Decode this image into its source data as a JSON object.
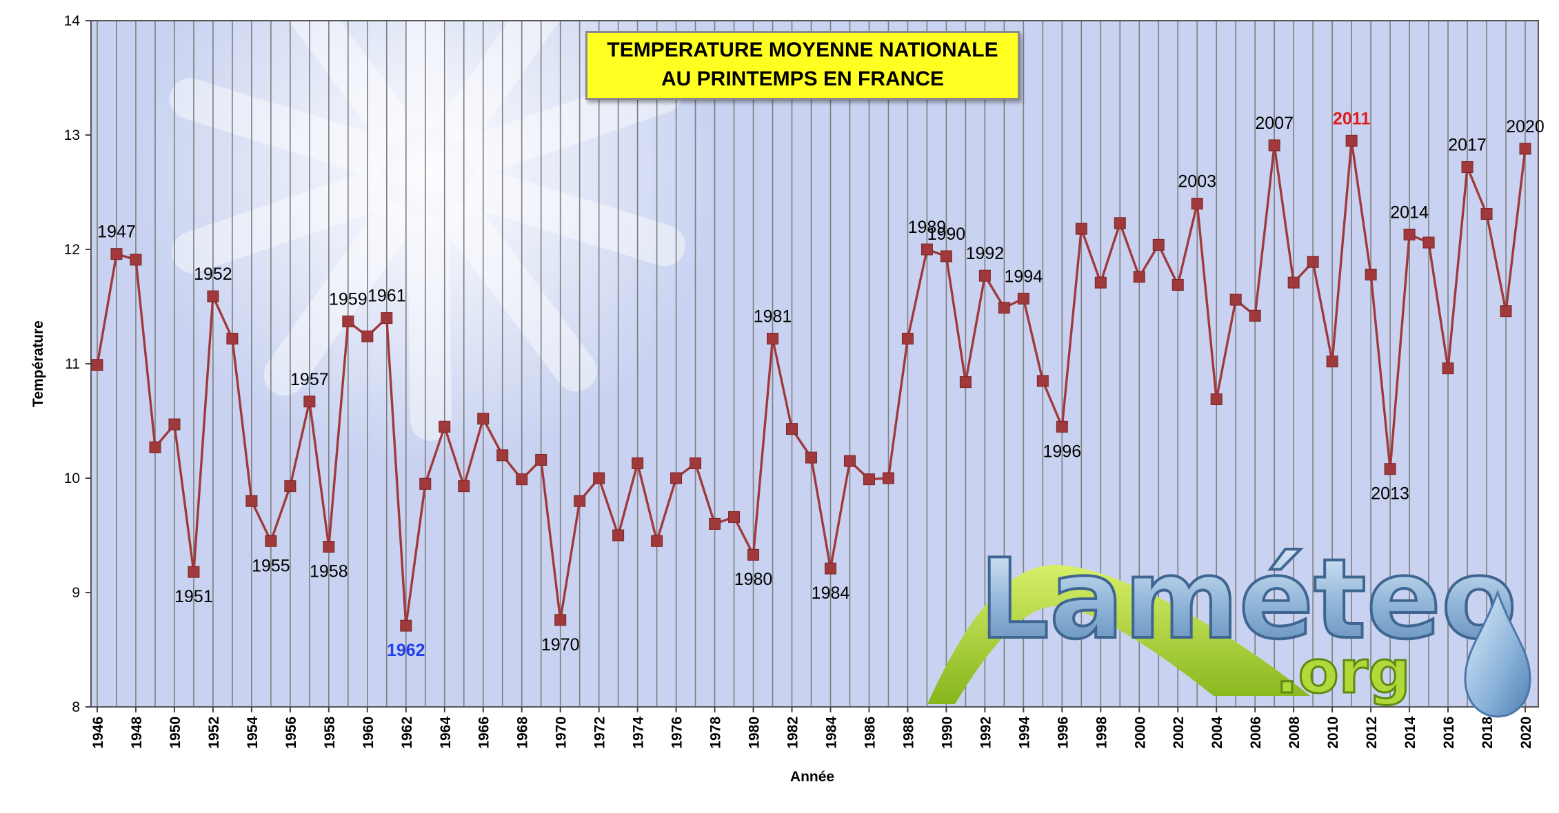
{
  "chart_data": {
    "type": "line",
    "title_lines": [
      "TEMPERATURE MOYENNE NATIONALE",
      "AU PRINTEMPS EN FRANCE"
    ],
    "xlabel": "Année",
    "ylabel": "Température",
    "ylim": [
      8,
      14
    ],
    "yticks": [
      "8",
      "9",
      "10",
      "11",
      "12",
      "13",
      "14"
    ],
    "xlim": [
      1946,
      2020
    ],
    "xticks": [
      "1946",
      "1948",
      "1950",
      "1952",
      "1954",
      "1956",
      "1958",
      "1960",
      "1962",
      "1964",
      "1966",
      "1968",
      "1970",
      "1972",
      "1974",
      "1976",
      "1978",
      "1980",
      "1982",
      "1984",
      "1986",
      "1988",
      "1990",
      "1992",
      "1994",
      "1996",
      "1998",
      "2000",
      "2002",
      "2004",
      "2006",
      "2008",
      "2010",
      "2012",
      "2014",
      "2016",
      "2018",
      "2020"
    ],
    "grid": "vertical",
    "series": [
      {
        "color": "#a0393b",
        "x": [
          1946,
          1947,
          1948,
          1949,
          1950,
          1951,
          1952,
          1953,
          1954,
          1955,
          1956,
          1957,
          1958,
          1959,
          1960,
          1961,
          1962,
          1963,
          1964,
          1965,
          1966,
          1967,
          1968,
          1969,
          1970,
          1971,
          1972,
          1973,
          1974,
          1975,
          1976,
          1977,
          1978,
          1979,
          1980,
          1981,
          1982,
          1983,
          1984,
          1985,
          1986,
          1987,
          1988,
          1989,
          1990,
          1991,
          1992,
          1993,
          1994,
          1995,
          1996,
          1997,
          1998,
          1999,
          2000,
          2001,
          2002,
          2003,
          2004,
          2005,
          2006,
          2007,
          2008,
          2009,
          2010,
          2011,
          2012,
          2013,
          2014,
          2015,
          2016,
          2017,
          2018,
          2019,
          2020
        ],
        "y": [
          10.99,
          11.96,
          11.91,
          10.27,
          10.47,
          9.18,
          11.59,
          11.22,
          9.8,
          9.45,
          9.93,
          10.67,
          9.4,
          11.37,
          11.24,
          11.4,
          8.71,
          9.95,
          10.45,
          9.93,
          10.52,
          10.2,
          9.99,
          10.16,
          8.76,
          9.8,
          10.0,
          9.5,
          10.13,
          9.45,
          10.0,
          10.13,
          9.6,
          9.66,
          9.33,
          11.22,
          10.43,
          10.18,
          9.21,
          10.15,
          9.99,
          10.0,
          11.22,
          12.0,
          11.94,
          10.84,
          11.77,
          11.49,
          11.57,
          10.85,
          10.45,
          12.18,
          11.71,
          12.23,
          11.76,
          12.04,
          11.69,
          12.4,
          10.69,
          11.56,
          11.42,
          12.91,
          11.71,
          11.89,
          11.02,
          12.95,
          11.78,
          10.08,
          12.13,
          12.06,
          10.96,
          12.72,
          12.31,
          11.46,
          12.88
        ]
      }
    ],
    "annotations": [
      {
        "year": 1947,
        "text": "1947",
        "pos": "above"
      },
      {
        "year": 1951,
        "text": "1951",
        "pos": "below"
      },
      {
        "year": 1952,
        "text": "1952",
        "pos": "above"
      },
      {
        "year": 1955,
        "text": "1955",
        "pos": "below"
      },
      {
        "year": 1957,
        "text": "1957",
        "pos": "above"
      },
      {
        "year": 1958,
        "text": "1958",
        "pos": "below"
      },
      {
        "year": 1959,
        "text": "1959",
        "pos": "above"
      },
      {
        "year": 1961,
        "text": "1961",
        "pos": "above"
      },
      {
        "year": 1962,
        "text": "1962",
        "pos": "below",
        "color": "blue"
      },
      {
        "year": 1970,
        "text": "1970",
        "pos": "below"
      },
      {
        "year": 1980,
        "text": "1980",
        "pos": "below"
      },
      {
        "year": 1981,
        "text": "1981",
        "pos": "above"
      },
      {
        "year": 1984,
        "text": "1984",
        "pos": "below"
      },
      {
        "year": 1989,
        "text": "1989",
        "pos": "above"
      },
      {
        "year": 1990,
        "text": "1990",
        "pos": "above"
      },
      {
        "year": 1992,
        "text": "1992",
        "pos": "above"
      },
      {
        "year": 1994,
        "text": "1994",
        "pos": "above"
      },
      {
        "year": 1996,
        "text": "1996",
        "pos": "below"
      },
      {
        "year": 2003,
        "text": "2003",
        "pos": "above"
      },
      {
        "year": 2007,
        "text": "2007",
        "pos": "above"
      },
      {
        "year": 2011,
        "text": "2011",
        "pos": "above",
        "color": "red"
      },
      {
        "year": 2013,
        "text": "2013",
        "pos": "below"
      },
      {
        "year": 2014,
        "text": "2014",
        "pos": "above"
      },
      {
        "year": 2017,
        "text": "2017",
        "pos": "above"
      },
      {
        "year": 2020,
        "text": "2020",
        "pos": "above"
      }
    ]
  },
  "logo": {
    "name": "Laméteo",
    "suffix": ".org"
  },
  "colors": {
    "plot_bg": "#c9d3f1",
    "gridline": "#7d7d7d",
    "series": "#a0393b",
    "title_bg": "#ffff22"
  }
}
